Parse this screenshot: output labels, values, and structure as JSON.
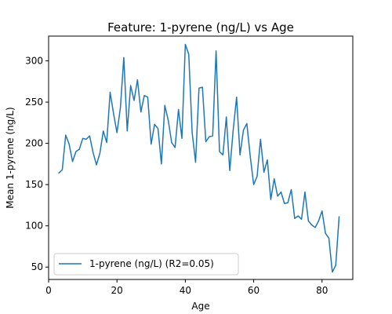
{
  "chart_data": {
    "type": "line",
    "title": "Feature: 1-pyrene (ng/L) vs Age",
    "xlabel": "Age",
    "ylabel": "Mean 1-pyrene (ng/L)",
    "xlim": [
      0,
      89
    ],
    "ylim": [
      35,
      330
    ],
    "x_ticks": [
      0,
      20,
      40,
      60,
      80
    ],
    "y_ticks": [
      50,
      100,
      150,
      200,
      250,
      300
    ],
    "grid": false,
    "legend_position": "lower-left",
    "series": [
      {
        "name": "1-pyrene (ng/L) (R2=0.05)",
        "color": "#1f77b4",
        "x": [
          3,
          4,
          5,
          6,
          7,
          8,
          9,
          10,
          11,
          12,
          13,
          14,
          15,
          16,
          17,
          18,
          19,
          20,
          21,
          22,
          23,
          24,
          25,
          26,
          27,
          28,
          29,
          30,
          31,
          32,
          33,
          34,
          35,
          36,
          37,
          38,
          39,
          40,
          41,
          42,
          43,
          44,
          45,
          46,
          47,
          48,
          49,
          50,
          51,
          52,
          53,
          54,
          55,
          56,
          57,
          58,
          59,
          60,
          61,
          62,
          63,
          64,
          65,
          66,
          67,
          68,
          69,
          70,
          71,
          72,
          73,
          74,
          75,
          76,
          77,
          78,
          79,
          80,
          81,
          82,
          83,
          84,
          85
        ],
        "y": [
          164,
          168,
          210,
          199,
          178,
          190,
          193,
          206,
          205,
          209,
          189,
          174,
          188,
          215,
          201,
          262,
          236,
          213,
          243,
          304,
          215,
          270,
          252,
          277,
          238,
          258,
          256,
          199,
          223,
          218,
          175,
          246,
          228,
          201,
          195,
          241,
          206,
          320,
          308,
          213,
          177,
          267,
          268,
          202,
          208,
          209,
          312,
          190,
          186,
          232,
          167,
          216,
          256,
          186,
          216,
          224,
          184,
          150,
          160,
          205,
          165,
          180,
          132,
          157,
          136,
          141,
          127,
          128,
          144,
          109,
          112,
          108,
          141,
          106,
          101,
          98,
          106,
          118,
          91,
          85,
          44,
          52,
          111
        ]
      }
    ]
  }
}
